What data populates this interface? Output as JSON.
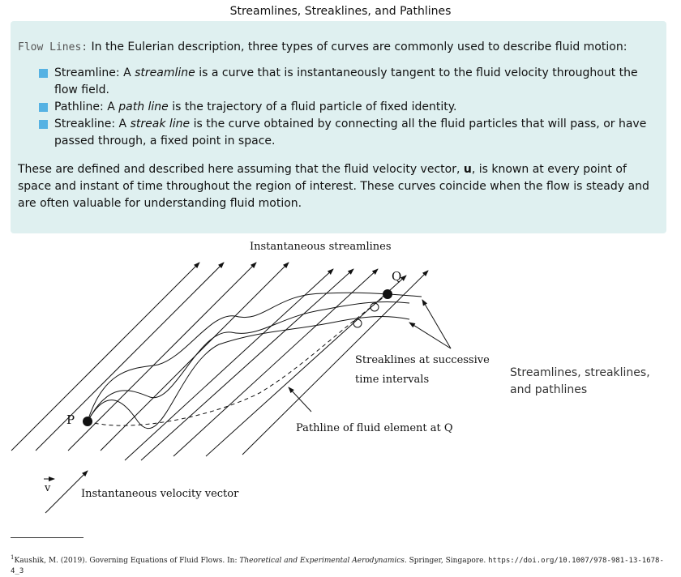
{
  "page": {
    "title": "Streamlines, Streaklines, and Pathlines"
  },
  "callout": {
    "lead_tag": "Flow Lines:",
    "lead_text": " In the Eulerian description, three types of curves are commonly used to describe fluid motion:",
    "bullets": [
      {
        "term": "Streamline:",
        "pre": " A ",
        "emph": "streamline",
        "post": " is a curve that is instantaneously tangent to the fluid velocity throughout the flow field."
      },
      {
        "term": "Pathline:",
        "pre": " A ",
        "emph": "path line",
        "post": " is the trajectory of a fluid particle of fixed identity."
      },
      {
        "term": "Streakline:",
        "pre": " A ",
        "emph": "streak line",
        "post": " is the curve obtained by connecting all the fluid particles that will pass, or have passed through, a fixed point in space."
      }
    ],
    "para_pre": "These are defined and described here assuming that the fluid velocity vector, ",
    "para_vector": "u",
    "para_post": ", is known at every point of space and instant of time throughout the region of interest. These curves coincide when the flow is steady and are often valuable for understanding fluid motion."
  },
  "diagram": {
    "label_streamlines": "Instantaneous streamlines",
    "label_q": "Q",
    "label_p": "P",
    "label_streaklines_1": "Streaklines at successive",
    "label_streaklines_2": "time intervals",
    "label_pathline": "Pathline of fluid element at Q",
    "label_v": "v",
    "label_velocity": "Instantaneous velocity vector"
  },
  "caption": "Streamlines, streaklines, and pathlines",
  "footnote": {
    "marker": "1",
    "text": "Kaushik, M. (2019). Governing Equations of Fluid Flows. In: ",
    "book": "Theoretical and Experimental Aerodynamics",
    "publisher": ". Springer, Singapore. ",
    "doi": "https://doi.org/10.1007/978-981-13-1678-4_3"
  }
}
